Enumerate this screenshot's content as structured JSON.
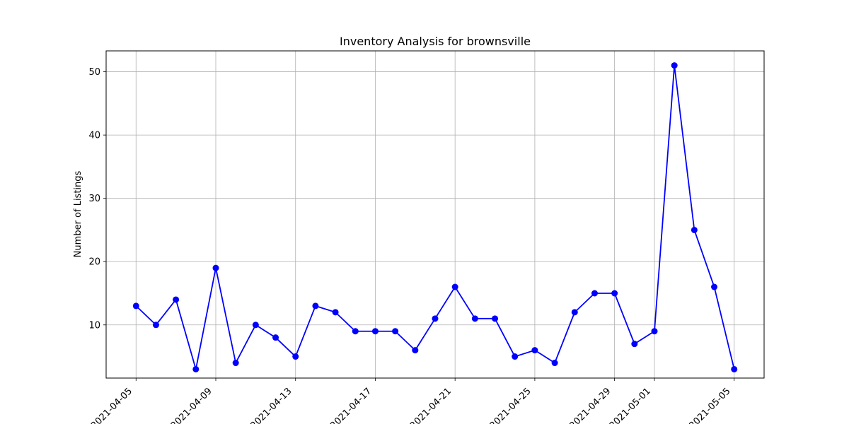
{
  "chart_data": {
    "type": "line",
    "title": "Inventory Analysis for brownsville",
    "xlabel": "",
    "ylabel": "Number of Listings",
    "grid": true,
    "x_ticks": [
      "2021-04-05",
      "2021-04-09",
      "2021-04-13",
      "2021-04-17",
      "2021-04-21",
      "2021-04-25",
      "2021-04-29",
      "2021-05-01",
      "2021-05-05"
    ],
    "y_ticks": [
      10,
      20,
      30,
      40,
      50
    ],
    "ylim": [
      1.6,
      53.3
    ],
    "xlim": [
      "2021-04-03 12:00",
      "2021-05-06 12:00"
    ],
    "series": [
      {
        "color": "#0000ff",
        "marker": "circle",
        "x": [
          "2021-04-05",
          "2021-04-06",
          "2021-04-07",
          "2021-04-08",
          "2021-04-09",
          "2021-04-10",
          "2021-04-11",
          "2021-04-12",
          "2021-04-13",
          "2021-04-14",
          "2021-04-15",
          "2021-04-16",
          "2021-04-17",
          "2021-04-18",
          "2021-04-19",
          "2021-04-20",
          "2021-04-21",
          "2021-04-22",
          "2021-04-23",
          "2021-04-24",
          "2021-04-25",
          "2021-04-26",
          "2021-04-27",
          "2021-04-28",
          "2021-04-29",
          "2021-04-30",
          "2021-05-01",
          "2021-05-02",
          "2021-05-03",
          "2021-05-04",
          "2021-05-05"
        ],
        "values": [
          13,
          10,
          14,
          3,
          19,
          4,
          10,
          8,
          5,
          13,
          12,
          9,
          9,
          9,
          6,
          11,
          16,
          11,
          11,
          5,
          6,
          4,
          12,
          15,
          15,
          7,
          9,
          51,
          25,
          16,
          3
        ]
      }
    ]
  }
}
